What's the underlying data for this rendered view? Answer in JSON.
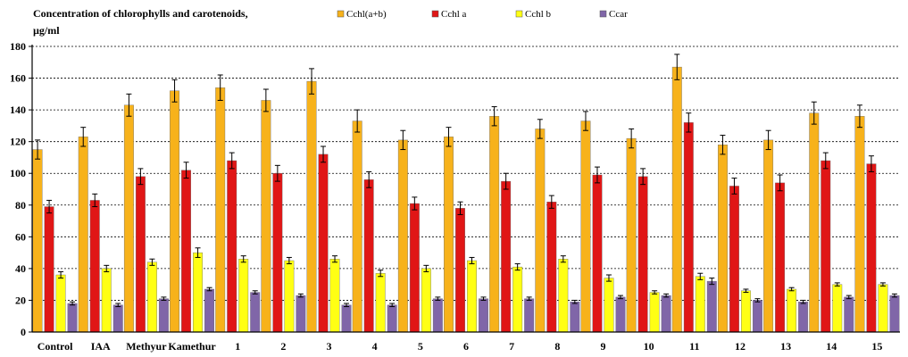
{
  "chart_data": {
    "type": "bar",
    "title": "Concentration of chlorophylls and carotenoids,",
    "ylabel": "µg/ml",
    "xlabel": "",
    "ylim": [
      0,
      180
    ],
    "yticks": [
      0,
      20,
      40,
      60,
      80,
      100,
      120,
      140,
      160,
      180
    ],
    "grid": "horizontal dashed",
    "legend_position": "top",
    "error_bars": true,
    "categories": [
      "Control",
      "IAA",
      "Methyur",
      "Kamethur",
      "1",
      "2",
      "3",
      "4",
      "5",
      "6",
      "7",
      "8",
      "9",
      "10",
      "11",
      "12",
      "13",
      "14",
      "15"
    ],
    "series": [
      {
        "name": "Cchl(a+b)",
        "color": "#F7B21B",
        "values": [
          115,
          123,
          143,
          152,
          154,
          146,
          158,
          133,
          121,
          123,
          136,
          128,
          133,
          122,
          167,
          118,
          121,
          138,
          136
        ],
        "errors": [
          6,
          6,
          7,
          7,
          8,
          7,
          8,
          7,
          6,
          6,
          6,
          6,
          6,
          6,
          8,
          6,
          6,
          7,
          7
        ]
      },
      {
        "name": "Cchl a",
        "color": "#E01616",
        "values": [
          79,
          83,
          98,
          102,
          108,
          100,
          112,
          96,
          81,
          78,
          95,
          82,
          99,
          98,
          132,
          92,
          94,
          108,
          106
        ],
        "errors": [
          4,
          4,
          5,
          5,
          5,
          5,
          5,
          5,
          4,
          4,
          5,
          4,
          5,
          5,
          6,
          5,
          5,
          5,
          5
        ]
      },
      {
        "name": "Cchl b",
        "color": "#FFFF14",
        "values": [
          36,
          40,
          44,
          50,
          46,
          45,
          46,
          37,
          40,
          45,
          41,
          46,
          34,
          25,
          35,
          26,
          27,
          30,
          30
        ],
        "errors": [
          2,
          2,
          2,
          3,
          2,
          2,
          2,
          2,
          2,
          2,
          2,
          2,
          2,
          1,
          2,
          1,
          1,
          1,
          1
        ]
      },
      {
        "name": "Ccar",
        "color": "#8066A8",
        "values": [
          18,
          17,
          21,
          27,
          25,
          23,
          17,
          17,
          21,
          21,
          21,
          19,
          22,
          23,
          32,
          20,
          19,
          22,
          23
        ],
        "errors": [
          1,
          1,
          1,
          1,
          1,
          1,
          1,
          1,
          1,
          1,
          1,
          1,
          1,
          1,
          2,
          1,
          1,
          1,
          1
        ]
      }
    ]
  }
}
